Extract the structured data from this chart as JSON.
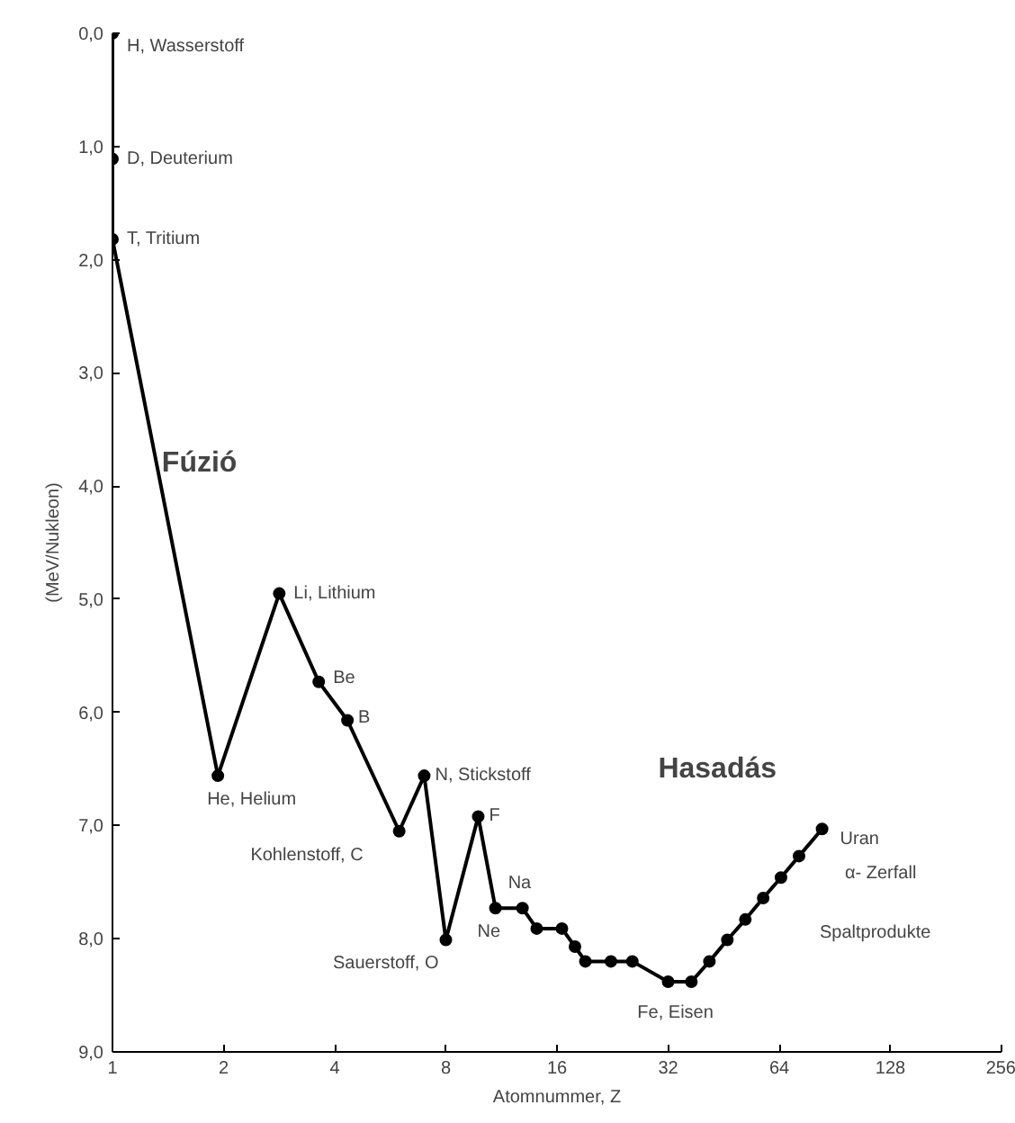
{
  "chart_data": {
    "type": "line",
    "xlabel": "Atomnummer, Z",
    "ylabel": "(MeV/Nukleon)",
    "log": "x",
    "grid": false,
    "marker": "circle",
    "line_style": "solid",
    "xlim": [
      1,
      256
    ],
    "xticks": [
      1,
      2,
      4,
      8,
      16,
      32,
      64,
      128,
      256
    ],
    "ylim": [
      9,
      0
    ],
    "yticks": [
      {
        "value": 0,
        "label": "0,0"
      },
      {
        "value": 1,
        "label": "1,0"
      },
      {
        "value": 2,
        "label": "2,0"
      },
      {
        "value": 3,
        "label": "3,0"
      },
      {
        "value": 4,
        "label": "4,0"
      },
      {
        "value": 5,
        "label": "5,0"
      },
      {
        "value": 6,
        "label": "6,0"
      },
      {
        "value": 7,
        "label": "7,0"
      },
      {
        "value": 8,
        "label": "8,0"
      },
      {
        "value": 9,
        "label": "9,0"
      }
    ],
    "series": [
      {
        "color": "#000000",
        "x": [
          1,
          1,
          1,
          1.93,
          2.83,
          3.62,
          4.33,
          5.98,
          6.99,
          8,
          9.79,
          10.9,
          12.9,
          14.1,
          16.5,
          17.9,
          19.1,
          22.4,
          25.6,
          32,
          37,
          41.4,
          46.3,
          51.8,
          57.9,
          64.7,
          72.4,
          83.6
        ],
        "values": [
          0,
          1.11,
          1.82,
          6.56,
          4.95,
          5.73,
          6.07,
          7.05,
          6.56,
          8.01,
          6.92,
          7.73,
          7.73,
          7.91,
          7.91,
          8.07,
          8.2,
          8.2,
          8.2,
          8.38,
          8.38,
          8.2,
          8.01,
          7.83,
          7.64,
          7.46,
          7.27,
          7.03
        ]
      }
    ],
    "annotations": [
      {
        "text": "H, Wasserstoff",
        "x": 1,
        "y": 0
      },
      {
        "text": "D, Deuterium",
        "x": 1,
        "y": 1.11
      },
      {
        "text": "T, Tritium",
        "x": 1,
        "y": 1.82
      },
      {
        "text": "Li, Lithium",
        "x": 2.83,
        "y": 4.95
      },
      {
        "text": "Be",
        "x": 3.62,
        "y": 5.73
      },
      {
        "text": "B",
        "x": 4.33,
        "y": 6.07
      },
      {
        "text": "He, Helium",
        "x": 1.93,
        "y": 6.56
      },
      {
        "text": "Kohlenstoff, C",
        "x": 5.98,
        "y": 7.05
      },
      {
        "text": "N, Stickstoff",
        "x": 6.99,
        "y": 6.56
      },
      {
        "text": "Sauerstoff, O",
        "x": 8,
        "y": 8.01
      },
      {
        "text": "F",
        "x": 9.79,
        "y": 6.92
      },
      {
        "text": "Ne",
        "x": 10.9,
        "y": 7.73
      },
      {
        "text": "Na",
        "x": 12.9,
        "y": 7.73
      },
      {
        "text": "Fe, Eisen",
        "x": 37,
        "y": 8.38
      },
      {
        "text": "Uran",
        "x": 83.6,
        "y": 7.03
      },
      "α- Zerfall",
      "Spaltprodukte",
      "Fúzió",
      "Hasadás"
    ]
  }
}
